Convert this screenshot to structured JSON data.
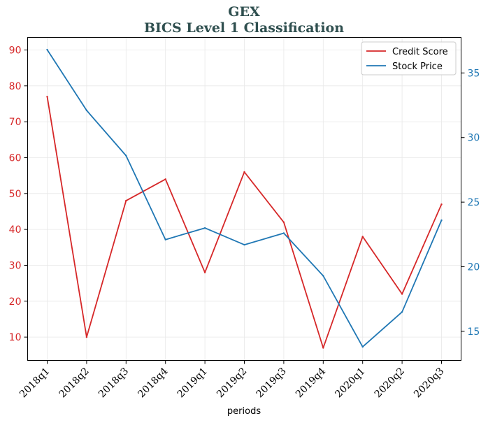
{
  "chart_data": {
    "type": "line",
    "title": "GEX",
    "subtitle": "BICS Level 1 Classification",
    "xlabel": "periods",
    "categories": [
      "2018q1",
      "2018q2",
      "2018q3",
      "2018q4",
      "2019q1",
      "2019q2",
      "2019q3",
      "2019q4",
      "2020q1",
      "2020q2",
      "2020q3"
    ],
    "series": [
      {
        "name": "Credit Score",
        "axis": "left",
        "color": "#d62728",
        "values": [
          77,
          10,
          48,
          54,
          28,
          56,
          42,
          7,
          38,
          22,
          47
        ]
      },
      {
        "name": "Stock Price",
        "axis": "right",
        "color": "#1f77b4",
        "values": [
          36.8,
          32.1,
          28.6,
          22.1,
          23.0,
          21.7,
          22.6,
          19.3,
          13.8,
          16.5,
          23.6
        ]
      }
    ],
    "left_axis": {
      "ylim": [
        3.5,
        93.5
      ],
      "ticks": [
        10,
        20,
        30,
        40,
        50,
        60,
        70,
        80,
        90
      ],
      "color": "#d62728"
    },
    "right_axis": {
      "ylim": [
        12.75,
        37.75
      ],
      "ticks": [
        15,
        20,
        25,
        30,
        35
      ],
      "color": "#1f77b4"
    },
    "grid": true,
    "legend_position": "top-right"
  }
}
